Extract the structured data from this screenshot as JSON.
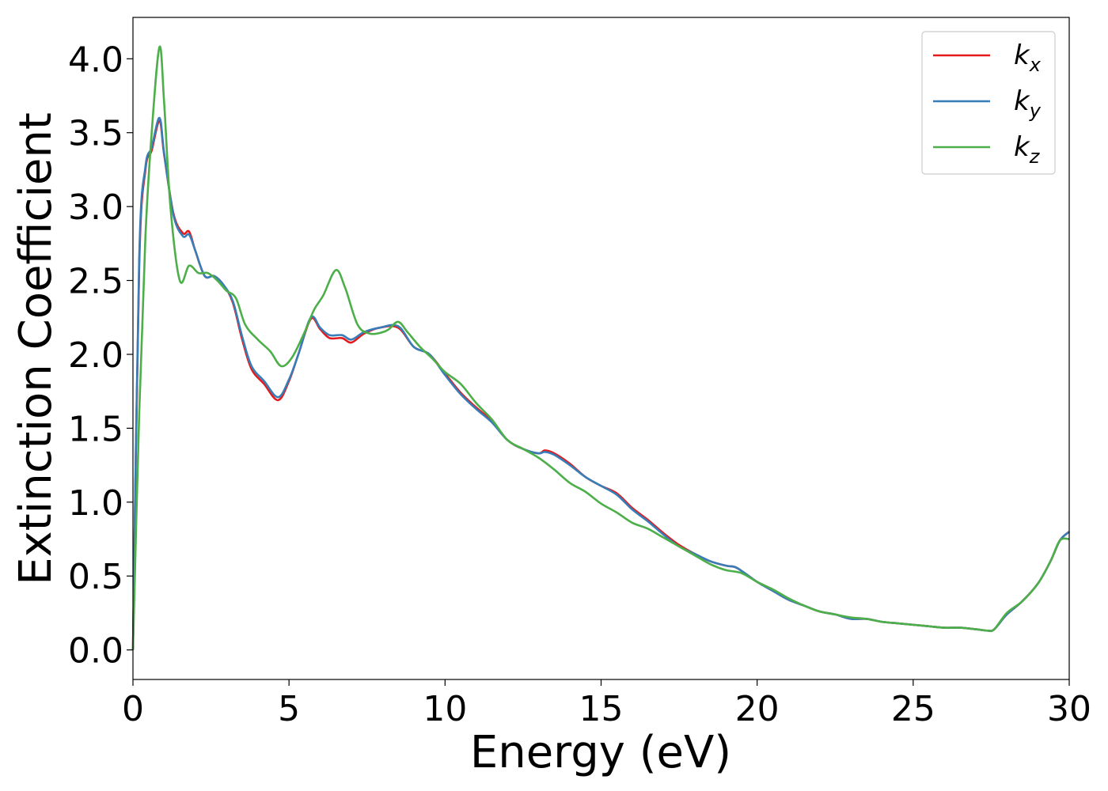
{
  "chart_data": {
    "type": "line",
    "xlabel": "Energy (eV)",
    "ylabel": "Extinction Coefficient",
    "xlim": [
      0,
      30
    ],
    "ylim": [
      -0.2,
      4.28
    ],
    "xticks": [
      "0",
      "5",
      "10",
      "15",
      "20",
      "25",
      "30"
    ],
    "yticks": [
      "0.0",
      "0.5",
      "1.0",
      "1.5",
      "2.0",
      "2.5",
      "3.0",
      "3.5",
      "4.0"
    ],
    "grid": false,
    "legend_position": "top-right",
    "series": [
      {
        "name": "k_x",
        "label_base": "k",
        "label_sub": "x",
        "color": "#e41a1c",
        "x": [
          0,
          0.2,
          0.4,
          0.6,
          0.85,
          1.0,
          1.3,
          1.6,
          1.8,
          2.0,
          2.3,
          2.6,
          2.9,
          3.2,
          3.5,
          3.8,
          4.2,
          4.65,
          5.0,
          5.3,
          5.7,
          6.0,
          6.3,
          6.7,
          7.0,
          7.4,
          7.9,
          8.5,
          9.0,
          9.5,
          10.0,
          10.5,
          11.0,
          11.5,
          12.0,
          12.5,
          13.0,
          13.2,
          13.5,
          14.0,
          14.5,
          15.0,
          15.5,
          16.0,
          16.5,
          17.0,
          17.5,
          18.0,
          18.5,
          19.0,
          19.3,
          19.6,
          20.0,
          20.5,
          21.0,
          21.5,
          22.0,
          22.5,
          23.0,
          23.5,
          24.0,
          24.5,
          25.0,
          25.5,
          26.0,
          26.5,
          27.0,
          27.4,
          27.6,
          28.0,
          28.5,
          29.0,
          29.4,
          29.7,
          30.0
        ],
        "values": [
          0.0,
          2.6,
          3.25,
          3.38,
          3.58,
          3.35,
          2.95,
          2.82,
          2.83,
          2.7,
          2.53,
          2.53,
          2.47,
          2.35,
          2.1,
          1.9,
          1.8,
          1.69,
          1.82,
          2.0,
          2.24,
          2.17,
          2.11,
          2.11,
          2.08,
          2.14,
          2.18,
          2.18,
          2.05,
          2.0,
          1.87,
          1.74,
          1.64,
          1.55,
          1.42,
          1.36,
          1.33,
          1.35,
          1.33,
          1.26,
          1.17,
          1.11,
          1.06,
          0.96,
          0.88,
          0.79,
          0.71,
          0.65,
          0.6,
          0.57,
          0.56,
          0.52,
          0.46,
          0.4,
          0.34,
          0.3,
          0.26,
          0.24,
          0.21,
          0.21,
          0.19,
          0.18,
          0.17,
          0.16,
          0.15,
          0.15,
          0.14,
          0.13,
          0.14,
          0.24,
          0.33,
          0.45,
          0.6,
          0.74,
          0.8
        ]
      },
      {
        "name": "k_y",
        "label_base": "k",
        "label_sub": "y",
        "color": "#377eb8",
        "x": [
          0,
          0.2,
          0.4,
          0.6,
          0.85,
          1.0,
          1.3,
          1.6,
          1.8,
          2.0,
          2.3,
          2.6,
          2.9,
          3.2,
          3.5,
          3.8,
          4.2,
          4.65,
          5.0,
          5.3,
          5.7,
          6.0,
          6.3,
          6.7,
          7.0,
          7.4,
          7.9,
          8.5,
          9.0,
          9.5,
          10.0,
          10.5,
          11.0,
          11.5,
          12.0,
          12.5,
          13.0,
          13.2,
          13.5,
          14.0,
          14.5,
          15.0,
          15.5,
          16.0,
          16.5,
          17.0,
          17.5,
          18.0,
          18.5,
          19.0,
          19.3,
          19.6,
          20.0,
          20.5,
          21.0,
          21.5,
          22.0,
          22.5,
          23.0,
          23.5,
          24.0,
          24.5,
          25.0,
          25.5,
          26.0,
          26.5,
          27.0,
          27.4,
          27.6,
          28.0,
          28.5,
          29.0,
          29.4,
          29.7,
          30.0
        ],
        "values": [
          0.0,
          2.65,
          3.27,
          3.4,
          3.6,
          3.36,
          2.94,
          2.8,
          2.81,
          2.7,
          2.53,
          2.53,
          2.47,
          2.36,
          2.12,
          1.92,
          1.82,
          1.71,
          1.83,
          2.0,
          2.25,
          2.18,
          2.13,
          2.13,
          2.1,
          2.15,
          2.18,
          2.19,
          2.05,
          2.0,
          1.86,
          1.73,
          1.63,
          1.54,
          1.42,
          1.36,
          1.33,
          1.34,
          1.32,
          1.25,
          1.17,
          1.11,
          1.05,
          0.95,
          0.87,
          0.78,
          0.7,
          0.65,
          0.6,
          0.57,
          0.56,
          0.52,
          0.46,
          0.4,
          0.34,
          0.3,
          0.26,
          0.24,
          0.21,
          0.21,
          0.19,
          0.18,
          0.17,
          0.16,
          0.15,
          0.15,
          0.14,
          0.13,
          0.14,
          0.24,
          0.33,
          0.45,
          0.6,
          0.74,
          0.8
        ]
      },
      {
        "name": "k_z",
        "label_base": "k",
        "label_sub": "z",
        "color": "#4daf4a",
        "x": [
          0,
          0.2,
          0.4,
          0.6,
          0.85,
          1.0,
          1.2,
          1.5,
          1.8,
          2.1,
          2.4,
          2.7,
          3.0,
          3.3,
          3.6,
          4.0,
          4.4,
          4.75,
          5.1,
          5.5,
          5.8,
          6.1,
          6.5,
          6.8,
          7.2,
          7.6,
          8.0,
          8.2,
          8.5,
          8.8,
          9.2,
          9.6,
          10.0,
          10.5,
          11.0,
          11.5,
          12.0,
          12.5,
          13.0,
          13.5,
          14.0,
          14.5,
          15.0,
          15.5,
          16.0,
          16.5,
          17.0,
          17.5,
          18.0,
          18.5,
          19.0,
          19.5,
          20.0,
          20.5,
          21.0,
          21.5,
          22.0,
          22.5,
          23.0,
          23.5,
          24.0,
          24.5,
          25.0,
          25.5,
          26.0,
          26.5,
          27.0,
          27.4,
          27.6,
          28.0,
          28.5,
          29.0,
          29.4,
          29.7,
          30.0
        ],
        "values": [
          0.0,
          1.6,
          2.8,
          3.5,
          4.08,
          3.7,
          3.0,
          2.5,
          2.6,
          2.55,
          2.55,
          2.5,
          2.43,
          2.38,
          2.2,
          2.1,
          2.02,
          1.92,
          1.98,
          2.15,
          2.3,
          2.4,
          2.57,
          2.45,
          2.2,
          2.14,
          2.15,
          2.17,
          2.22,
          2.15,
          2.05,
          1.97,
          1.88,
          1.8,
          1.67,
          1.56,
          1.42,
          1.36,
          1.3,
          1.22,
          1.13,
          1.07,
          0.99,
          0.93,
          0.86,
          0.82,
          0.76,
          0.7,
          0.64,
          0.58,
          0.54,
          0.52,
          0.46,
          0.41,
          0.35,
          0.3,
          0.26,
          0.24,
          0.22,
          0.21,
          0.19,
          0.18,
          0.17,
          0.16,
          0.15,
          0.15,
          0.14,
          0.13,
          0.14,
          0.25,
          0.33,
          0.45,
          0.6,
          0.74,
          0.75
        ]
      }
    ]
  }
}
